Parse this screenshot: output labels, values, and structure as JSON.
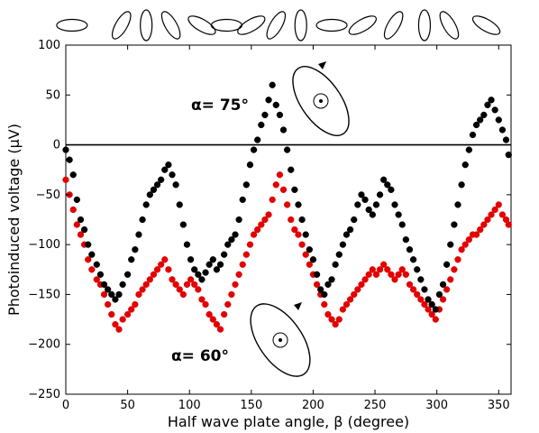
{
  "chart_data": {
    "type": "scatter",
    "xlabel": "Half wave plate angle, β (degree)",
    "ylabel": "Photoinduced voltage (μV)",
    "xlim": [
      0,
      360
    ],
    "ylim": [
      -250,
      100
    ],
    "xticks": [
      0,
      50,
      100,
      150,
      200,
      250,
      300,
      350
    ],
    "yticks": [
      100,
      50,
      0,
      -50,
      -100,
      -150,
      -200,
      -250
    ],
    "xtick_labels": [
      "0",
      "50",
      "100",
      "150",
      "200",
      "250",
      "300",
      "350"
    ],
    "ytick_labels": [
      "100",
      "50",
      "0",
      "−50",
      "−100",
      "−150",
      "−200",
      "−250"
    ],
    "grid": false,
    "reference_line_y": 0,
    "polarization_icons": [
      {
        "x": 5,
        "angle": 0
      },
      {
        "x": 45,
        "angle": -60
      },
      {
        "x": 65,
        "angle": -90
      },
      {
        "x": 85,
        "angle": -120
      },
      {
        "x": 110,
        "angle": -150
      },
      {
        "x": 130,
        "angle": -180
      },
      {
        "x": 150,
        "angle": -210
      },
      {
        "x": 170,
        "angle": -240
      },
      {
        "x": 190,
        "angle": -270
      },
      {
        "x": 215,
        "angle": -360
      },
      {
        "x": 240,
        "angle": -390
      },
      {
        "x": 265,
        "angle": -420
      },
      {
        "x": 290,
        "angle": -450
      },
      {
        "x": 310,
        "angle": -480
      },
      {
        "x": 340,
        "angle": -510
      }
    ],
    "series": [
      {
        "color": "#000000",
        "annotation": "α= 75°",
        "points": [
          [
            0,
            -5
          ],
          [
            3,
            -15
          ],
          [
            6,
            -30
          ],
          [
            9,
            -55
          ],
          [
            12,
            -75
          ],
          [
            15,
            -85
          ],
          [
            18,
            -100
          ],
          [
            21,
            -110
          ],
          [
            25,
            -120
          ],
          [
            28,
            -130
          ],
          [
            31,
            -140
          ],
          [
            34,
            -145
          ],
          [
            37,
            -150
          ],
          [
            40,
            -155
          ],
          [
            43,
            -150
          ],
          [
            46,
            -140
          ],
          [
            50,
            -130
          ],
          [
            53,
            -115
          ],
          [
            56,
            -105
          ],
          [
            59,
            -90
          ],
          [
            62,
            -75
          ],
          [
            65,
            -60
          ],
          [
            68,
            -50
          ],
          [
            71,
            -45
          ],
          [
            74,
            -40
          ],
          [
            77,
            -35
          ],
          [
            80,
            -25
          ],
          [
            83,
            -20
          ],
          [
            86,
            -30
          ],
          [
            89,
            -40
          ],
          [
            92,
            -60
          ],
          [
            95,
            -80
          ],
          [
            98,
            -100
          ],
          [
            101,
            -115
          ],
          [
            104,
            -125
          ],
          [
            107,
            -130
          ],
          [
            110,
            -135
          ],
          [
            113,
            -128
          ],
          [
            116,
            -120
          ],
          [
            119,
            -115
          ],
          [
            122,
            -125
          ],
          [
            125,
            -120
          ],
          [
            128,
            -110
          ],
          [
            131,
            -100
          ],
          [
            134,
            -95
          ],
          [
            137,
            -90
          ],
          [
            140,
            -75
          ],
          [
            143,
            -55
          ],
          [
            146,
            -40
          ],
          [
            149,
            -20
          ],
          [
            152,
            -5
          ],
          [
            155,
            5
          ],
          [
            158,
            20
          ],
          [
            161,
            30
          ],
          [
            164,
            45
          ],
          [
            167,
            60
          ],
          [
            170,
            40
          ],
          [
            173,
            30
          ],
          [
            176,
            15
          ],
          [
            179,
            -5
          ],
          [
            182,
            -25
          ],
          [
            185,
            -45
          ],
          [
            188,
            -60
          ],
          [
            191,
            -75
          ],
          [
            194,
            -90
          ],
          [
            197,
            -105
          ],
          [
            200,
            -115
          ],
          [
            203,
            -130
          ],
          [
            206,
            -145
          ],
          [
            209,
            -150
          ],
          [
            212,
            -140
          ],
          [
            215,
            -135
          ],
          [
            218,
            -120
          ],
          [
            221,
            -110
          ],
          [
            224,
            -100
          ],
          [
            227,
            -90
          ],
          [
            230,
            -85
          ],
          [
            233,
            -75
          ],
          [
            236,
            -60
          ],
          [
            239,
            -50
          ],
          [
            242,
            -55
          ],
          [
            245,
            -65
          ],
          [
            248,
            -70
          ],
          [
            251,
            -60
          ],
          [
            254,
            -50
          ],
          [
            257,
            -35
          ],
          [
            260,
            -40
          ],
          [
            263,
            -45
          ],
          [
            266,
            -60
          ],
          [
            269,
            -70
          ],
          [
            272,
            -80
          ],
          [
            275,
            -95
          ],
          [
            278,
            -105
          ],
          [
            281,
            -115
          ],
          [
            284,
            -125
          ],
          [
            287,
            -135
          ],
          [
            290,
            -145
          ],
          [
            293,
            -155
          ],
          [
            296,
            -160
          ],
          [
            299,
            -165
          ],
          [
            302,
            -150
          ],
          [
            305,
            -140
          ],
          [
            308,
            -120
          ],
          [
            311,
            -100
          ],
          [
            314,
            -80
          ],
          [
            317,
            -60
          ],
          [
            320,
            -40
          ],
          [
            323,
            -20
          ],
          [
            326,
            -5
          ],
          [
            329,
            10
          ],
          [
            332,
            20
          ],
          [
            335,
            25
          ],
          [
            338,
            30
          ],
          [
            341,
            40
          ],
          [
            344,
            45
          ],
          [
            347,
            35
          ],
          [
            350,
            25
          ],
          [
            353,
            15
          ],
          [
            356,
            5
          ],
          [
            358,
            -10
          ]
        ]
      },
      {
        "color": "#e30000",
        "annotation": "α= 60°",
        "points": [
          [
            0,
            -35
          ],
          [
            3,
            -50
          ],
          [
            6,
            -65
          ],
          [
            9,
            -80
          ],
          [
            12,
            -90
          ],
          [
            15,
            -100
          ],
          [
            18,
            -115
          ],
          [
            21,
            -125
          ],
          [
            25,
            -135
          ],
          [
            28,
            -140
          ],
          [
            31,
            -150
          ],
          [
            34,
            -160
          ],
          [
            37,
            -170
          ],
          [
            40,
            -180
          ],
          [
            43,
            -185
          ],
          [
            46,
            -175
          ],
          [
            50,
            -170
          ],
          [
            53,
            -165
          ],
          [
            56,
            -160
          ],
          [
            59,
            -150
          ],
          [
            62,
            -145
          ],
          [
            65,
            -140
          ],
          [
            68,
            -135
          ],
          [
            71,
            -130
          ],
          [
            74,
            -125
          ],
          [
            77,
            -120
          ],
          [
            80,
            -115
          ],
          [
            83,
            -125
          ],
          [
            86,
            -135
          ],
          [
            89,
            -140
          ],
          [
            92,
            -145
          ],
          [
            95,
            -150
          ],
          [
            98,
            -140
          ],
          [
            101,
            -135
          ],
          [
            104,
            -140
          ],
          [
            107,
            -145
          ],
          [
            110,
            -155
          ],
          [
            113,
            -160
          ],
          [
            116,
            -170
          ],
          [
            119,
            -175
          ],
          [
            122,
            -180
          ],
          [
            125,
            -185
          ],
          [
            128,
            -170
          ],
          [
            131,
            -160
          ],
          [
            134,
            -150
          ],
          [
            137,
            -140
          ],
          [
            140,
            -130
          ],
          [
            143,
            -120
          ],
          [
            146,
            -110
          ],
          [
            149,
            -100
          ],
          [
            152,
            -90
          ],
          [
            155,
            -85
          ],
          [
            158,
            -80
          ],
          [
            161,
            -75
          ],
          [
            164,
            -70
          ],
          [
            167,
            -55
          ],
          [
            170,
            -40
          ],
          [
            173,
            -30
          ],
          [
            176,
            -45
          ],
          [
            179,
            -60
          ],
          [
            182,
            -75
          ],
          [
            185,
            -85
          ],
          [
            188,
            -90
          ],
          [
            191,
            -100
          ],
          [
            194,
            -110
          ],
          [
            197,
            -120
          ],
          [
            200,
            -130
          ],
          [
            203,
            -140
          ],
          [
            206,
            -150
          ],
          [
            209,
            -160
          ],
          [
            212,
            -170
          ],
          [
            215,
            -175
          ],
          [
            218,
            -180
          ],
          [
            221,
            -175
          ],
          [
            224,
            -165
          ],
          [
            227,
            -160
          ],
          [
            230,
            -155
          ],
          [
            233,
            -150
          ],
          [
            236,
            -145
          ],
          [
            239,
            -140
          ],
          [
            242,
            -135
          ],
          [
            245,
            -130
          ],
          [
            248,
            -125
          ],
          [
            251,
            -130
          ],
          [
            254,
            -125
          ],
          [
            257,
            -120
          ],
          [
            260,
            -125
          ],
          [
            263,
            -130
          ],
          [
            266,
            -135
          ],
          [
            269,
            -130
          ],
          [
            272,
            -125
          ],
          [
            275,
            -130
          ],
          [
            278,
            -140
          ],
          [
            281,
            -145
          ],
          [
            284,
            -150
          ],
          [
            287,
            -155
          ],
          [
            290,
            -160
          ],
          [
            293,
            -165
          ],
          [
            296,
            -170
          ],
          [
            299,
            -175
          ],
          [
            302,
            -165
          ],
          [
            305,
            -155
          ],
          [
            308,
            -145
          ],
          [
            311,
            -135
          ],
          [
            314,
            -125
          ],
          [
            317,
            -115
          ],
          [
            320,
            -105
          ],
          [
            323,
            -100
          ],
          [
            326,
            -95
          ],
          [
            329,
            -90
          ],
          [
            332,
            -90
          ],
          [
            335,
            -85
          ],
          [
            338,
            -80
          ],
          [
            341,
            -75
          ],
          [
            344,
            -70
          ],
          [
            347,
            -65
          ],
          [
            350,
            -60
          ],
          [
            353,
            -70
          ],
          [
            356,
            -75
          ],
          [
            358,
            -80
          ]
        ]
      }
    ]
  }
}
